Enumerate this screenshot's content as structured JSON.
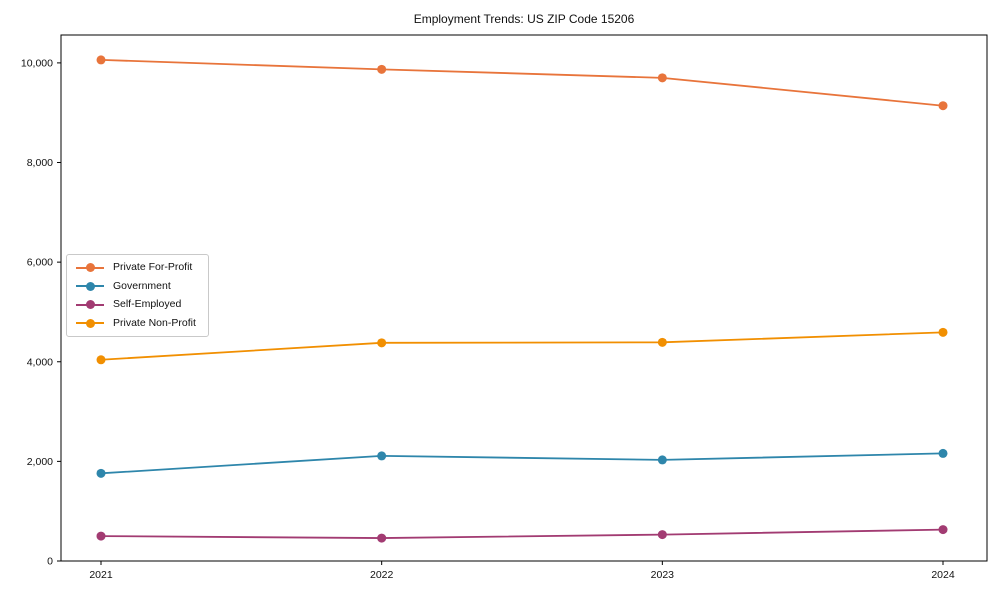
{
  "chart_data": {
    "type": "line",
    "title": "Employment Trends: US ZIP Code 15206",
    "xlabel": "",
    "ylabel": "",
    "x": [
      "2021",
      "2022",
      "2023",
      "2024"
    ],
    "series": [
      {
        "name": "Private For-Profit",
        "color": "#e8743b",
        "values": [
          10060,
          9870,
          9700,
          9140
        ]
      },
      {
        "name": "Government",
        "color": "#2e86ab",
        "values": [
          1760,
          2110,
          2030,
          2160
        ]
      },
      {
        "name": "Self-Employed",
        "color": "#a23b72",
        "values": [
          500,
          460,
          530,
          630
        ]
      },
      {
        "name": "Private Non-Profit",
        "color": "#f18f01",
        "values": [
          4040,
          4380,
          4390,
          4590
        ]
      }
    ],
    "ylim": [
      0,
      10560
    ],
    "yticks": [
      {
        "value": 0,
        "label": "0"
      },
      {
        "value": 2000,
        "label": "2,000"
      },
      {
        "value": 4000,
        "label": "4,000"
      },
      {
        "value": 6000,
        "label": "6,000"
      },
      {
        "value": 8000,
        "label": "8,000"
      },
      {
        "value": 10000,
        "label": "10,000"
      }
    ],
    "grid": false,
    "legend_position": "center-left",
    "frame_color": "#000000",
    "marker": "circle"
  }
}
